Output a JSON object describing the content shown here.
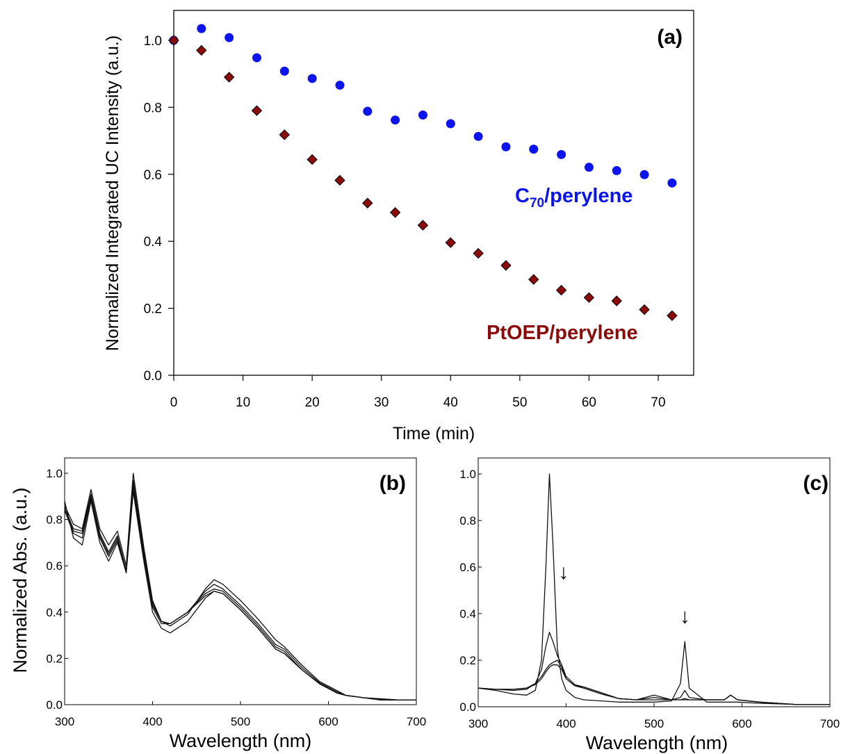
{
  "colors": {
    "c70": "#0b14f0",
    "ptoep": "#8b0a0a",
    "spectra": "#111111"
  },
  "chart_data": [
    {
      "panel": "(a)",
      "type": "scatter",
      "xlabel": "Time (min)",
      "ylabel": "Normalized Integrated UC Intensity (a.u.)",
      "xlim": [
        -2,
        75
      ],
      "ylim": [
        0,
        1.1
      ],
      "xticks": [
        "0",
        "10",
        "20",
        "30",
        "40",
        "50",
        "60",
        "70"
      ],
      "yticks": [
        "0.0",
        "0.2",
        "0.4",
        "0.6",
        "0.8",
        "1.0"
      ],
      "grid": false,
      "series": [
        {
          "name": "C70/perylene",
          "label_main": "C",
          "label_sub": "70",
          "label_rest": "/perylene",
          "marker": "circle",
          "color": "#0b14f0",
          "x": [
            0,
            4,
            8,
            12,
            16,
            20,
            24,
            28,
            32,
            36,
            40,
            44,
            48,
            52,
            56,
            60,
            64,
            68,
            72
          ],
          "y": [
            1.0,
            1.035,
            1.008,
            0.948,
            0.908,
            0.886,
            0.866,
            0.788,
            0.762,
            0.777,
            0.751,
            0.713,
            0.682,
            0.675,
            0.659,
            0.621,
            0.611,
            0.599,
            0.574
          ]
        },
        {
          "name": "PtOEP/perylene",
          "marker": "diamond",
          "color": "#8b0a0a",
          "x": [
            0,
            4,
            8,
            12,
            16,
            20,
            24,
            28,
            32,
            36,
            40,
            44,
            48,
            52,
            56,
            60,
            64,
            68,
            72
          ],
          "y": [
            1.0,
            0.97,
            0.89,
            0.79,
            0.718,
            0.644,
            0.582,
            0.514,
            0.486,
            0.448,
            0.396,
            0.364,
            0.328,
            0.286,
            0.254,
            0.232,
            0.222,
            0.196,
            0.178
          ]
        }
      ]
    },
    {
      "panel": "(b)",
      "type": "line",
      "xlabel": "Wavelength (nm)",
      "ylabel": "Normalized Abs. (a.u.)",
      "xlim": [
        300,
        700
      ],
      "ylim": [
        0,
        1.0
      ],
      "xticks": [
        "300",
        "400",
        "500",
        "600",
        "700"
      ],
      "yticks": [
        "0.0",
        "0.2",
        "0.4",
        "0.6",
        "0.8",
        "1.0"
      ],
      "series": [
        {
          "x": [
            300,
            310,
            320,
            330,
            340,
            350,
            360,
            370,
            378,
            390,
            400,
            410,
            420,
            440,
            460,
            470,
            480,
            500,
            520,
            540,
            550,
            570,
            590,
            610,
            620,
            640,
            660,
            680,
            700
          ],
          "y": [
            0.86,
            0.78,
            0.76,
            0.93,
            0.76,
            0.69,
            0.75,
            0.6,
            1.0,
            0.68,
            0.45,
            0.36,
            0.34,
            0.39,
            0.5,
            0.54,
            0.52,
            0.45,
            0.37,
            0.28,
            0.25,
            0.17,
            0.1,
            0.06,
            0.04,
            0.03,
            0.025,
            0.02,
            0.02
          ]
        },
        {
          "x": [
            300,
            310,
            320,
            330,
            340,
            350,
            360,
            370,
            378,
            390,
            400,
            410,
            420,
            440,
            460,
            470,
            480,
            500,
            520,
            540,
            550,
            570,
            590,
            610,
            620,
            640,
            660,
            680,
            700
          ],
          "y": [
            0.85,
            0.76,
            0.75,
            0.91,
            0.74,
            0.66,
            0.73,
            0.58,
            0.97,
            0.66,
            0.44,
            0.36,
            0.35,
            0.4,
            0.49,
            0.52,
            0.5,
            0.43,
            0.35,
            0.26,
            0.24,
            0.16,
            0.095,
            0.055,
            0.04,
            0.03,
            0.025,
            0.02,
            0.02
          ]
        },
        {
          "x": [
            300,
            310,
            320,
            330,
            340,
            350,
            360,
            370,
            378,
            390,
            400,
            410,
            420,
            440,
            460,
            470,
            480,
            500,
            520,
            540,
            550,
            570,
            590,
            610,
            620,
            640,
            660,
            680,
            700
          ],
          "y": [
            0.84,
            0.75,
            0.74,
            0.9,
            0.73,
            0.65,
            0.72,
            0.58,
            0.95,
            0.65,
            0.43,
            0.36,
            0.35,
            0.4,
            0.48,
            0.5,
            0.49,
            0.42,
            0.34,
            0.25,
            0.23,
            0.15,
            0.09,
            0.05,
            0.04,
            0.03,
            0.02,
            0.02,
            0.02
          ]
        },
        {
          "x": [
            300,
            310,
            320,
            330,
            340,
            350,
            360,
            370,
            378,
            390,
            400,
            410,
            420,
            440,
            460,
            470,
            480,
            500,
            520,
            540,
            550,
            570,
            590,
            610,
            620,
            640,
            660,
            680,
            700
          ],
          "y": [
            0.84,
            0.74,
            0.72,
            0.89,
            0.72,
            0.64,
            0.71,
            0.57,
            0.93,
            0.64,
            0.42,
            0.35,
            0.35,
            0.4,
            0.47,
            0.49,
            0.48,
            0.41,
            0.33,
            0.24,
            0.22,
            0.15,
            0.09,
            0.05,
            0.04,
            0.03,
            0.02,
            0.02,
            0.02
          ]
        },
        {
          "x": [
            300,
            310,
            320,
            330,
            340,
            350,
            360,
            370,
            378,
            390,
            400,
            410,
            420,
            440,
            460,
            470,
            480,
            500,
            520,
            540,
            550,
            570,
            590,
            610,
            620,
            640,
            660,
            680,
            700
          ],
          "y": [
            0.88,
            0.72,
            0.69,
            0.88,
            0.7,
            0.62,
            0.7,
            0.57,
            0.92,
            0.62,
            0.4,
            0.33,
            0.31,
            0.36,
            0.46,
            0.49,
            0.48,
            0.41,
            0.33,
            0.24,
            0.22,
            0.15,
            0.09,
            0.05,
            0.04,
            0.03,
            0.02,
            0.02,
            0.02
          ]
        }
      ]
    },
    {
      "panel": "(c)",
      "type": "line",
      "xlabel": "Wavelength (nm)",
      "xlim": [
        300,
        700
      ],
      "ylim": [
        0,
        1.0
      ],
      "xticks": [
        "300",
        "400",
        "500",
        "600",
        "700"
      ],
      "yticks": [
        "0.0",
        "0.2",
        "0.4",
        "0.6",
        "0.8",
        "1.0"
      ],
      "arrow_symbol": "↓",
      "arrows": [
        {
          "x": 397,
          "y": 0.55
        },
        {
          "x": 535,
          "y": 0.36
        }
      ],
      "series": [
        {
          "x": [
            300,
            320,
            340,
            355,
            365,
            372,
            377,
            381,
            385,
            390,
            395,
            400,
            410,
            420,
            440,
            460,
            480,
            500,
            520,
            530,
            535,
            540,
            560,
            580,
            587,
            595,
            620,
            660,
            700
          ],
          "y": [
            0.08,
            0.07,
            0.055,
            0.05,
            0.07,
            0.2,
            0.6,
            1.0,
            0.7,
            0.25,
            0.12,
            0.07,
            0.04,
            0.03,
            0.025,
            0.02,
            0.02,
            0.02,
            0.025,
            0.1,
            0.28,
            0.08,
            0.02,
            0.02,
            0.02,
            0.02,
            0.015,
            0.01,
            0.01
          ]
        },
        {
          "x": [
            300,
            320,
            340,
            355,
            365,
            372,
            377,
            381,
            385,
            390,
            395,
            400,
            410,
            420,
            440,
            460,
            480,
            500,
            520,
            530,
            535,
            540,
            560,
            580,
            587,
            595,
            620,
            660,
            700
          ],
          "y": [
            0.08,
            0.075,
            0.07,
            0.075,
            0.1,
            0.16,
            0.26,
            0.32,
            0.28,
            0.22,
            0.18,
            0.13,
            0.095,
            0.085,
            0.06,
            0.035,
            0.03,
            0.03,
            0.03,
            0.04,
            0.07,
            0.04,
            0.03,
            0.03,
            0.05,
            0.03,
            0.02,
            0.01,
            0.01
          ]
        },
        {
          "x": [
            300,
            320,
            340,
            355,
            365,
            372,
            377,
            381,
            385,
            390,
            395,
            400,
            410,
            420,
            440,
            460,
            480,
            500,
            520,
            530,
            535,
            540,
            560,
            580,
            587,
            595,
            620,
            660,
            700
          ],
          "y": [
            0.08,
            0.075,
            0.075,
            0.08,
            0.1,
            0.13,
            0.16,
            0.18,
            0.19,
            0.2,
            0.17,
            0.12,
            0.09,
            0.085,
            0.06,
            0.035,
            0.03,
            0.05,
            0.03,
            0.03,
            0.035,
            0.03,
            0.03,
            0.03,
            0.05,
            0.03,
            0.02,
            0.01,
            0.01
          ]
        },
        {
          "x": [
            300,
            320,
            340,
            355,
            365,
            372,
            377,
            381,
            385,
            390,
            395,
            400,
            410,
            420,
            440,
            460,
            480,
            500,
            520,
            530,
            535,
            540,
            560,
            580,
            587,
            595,
            620,
            660,
            700
          ],
          "y": [
            0.08,
            0.075,
            0.075,
            0.08,
            0.095,
            0.12,
            0.15,
            0.17,
            0.18,
            0.18,
            0.16,
            0.12,
            0.09,
            0.08,
            0.055,
            0.035,
            0.03,
            0.04,
            0.03,
            0.03,
            0.03,
            0.03,
            0.03,
            0.03,
            0.05,
            0.03,
            0.02,
            0.01,
            0.01
          ]
        }
      ]
    }
  ]
}
